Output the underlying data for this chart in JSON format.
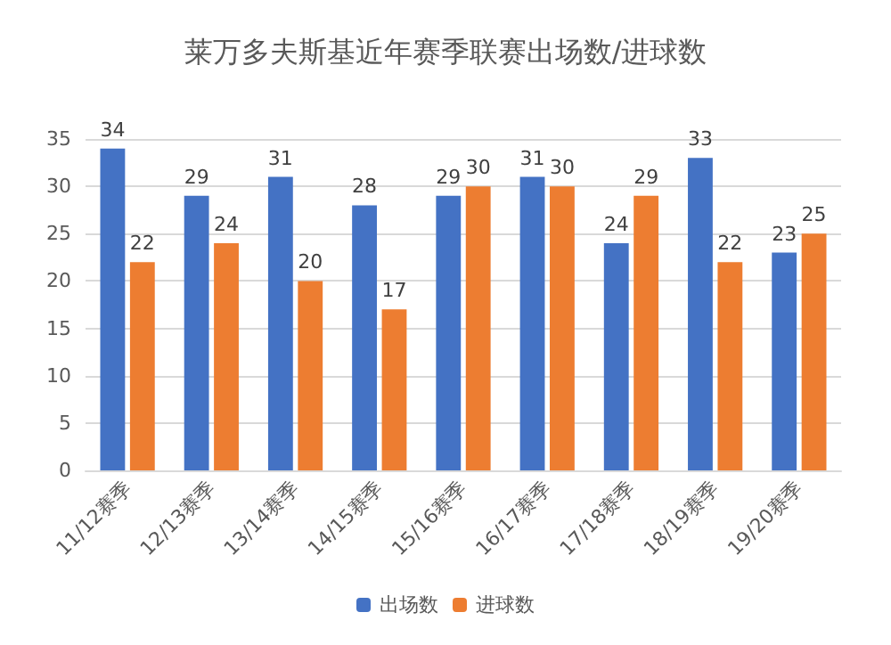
{
  "chart_data": {
    "type": "bar",
    "title": "莱万多夫斯基近年赛季联赛出场数/进球数",
    "categories": [
      "11/12赛季",
      "12/13赛季",
      "13/14赛季",
      "14/15赛季",
      "15/16赛季",
      "16/17赛季",
      "17/18赛季",
      "18/19赛季",
      "19/20赛季"
    ],
    "series": [
      {
        "name": "出场数",
        "color": "#4472c4",
        "values": [
          34,
          29,
          31,
          28,
          29,
          31,
          24,
          33,
          23
        ]
      },
      {
        "name": "进球数",
        "color": "#ed7d31",
        "values": [
          22,
          24,
          20,
          17,
          30,
          30,
          29,
          22,
          25
        ]
      }
    ],
    "ylim": [
      0,
      35
    ],
    "yticks": [
      0,
      5,
      10,
      15,
      20,
      25,
      30,
      35
    ],
    "grid": "y",
    "legend": "bottom",
    "data_labels": true
  }
}
